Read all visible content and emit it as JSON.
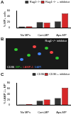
{
  "chart_data": [
    {
      "panel": "A",
      "type": "bar",
      "y_label": "% MP+ cells",
      "categories": [
        "No MPs",
        "Cont-MP",
        "Apo-MP"
      ],
      "series": [
        {
          "name": "Rag1−/−",
          "color": "#333333",
          "values": [
            4,
            20,
            22
          ]
        },
        {
          "name": "Rag1−/− + inhibitor",
          "color": "#d62728",
          "values": [
            5,
            18,
            50
          ]
        }
      ],
      "ylim": [
        0,
        60
      ],
      "yticks": [
        0,
        20,
        40,
        60
      ],
      "legend": "top",
      "grid": false
    },
    {
      "panel": "C",
      "type": "bar",
      "y_label": "% LAMP-1+ MP",
      "categories": [
        "No MPs",
        "Cont-MP",
        "Apo-MP"
      ],
      "series": [
        {
          "name": "CD36",
          "color": "#333333",
          "values": [
            2,
            15,
            25
          ]
        },
        {
          "name": "CD36 + inhibitor",
          "color": "#d62728",
          "values": [
            3,
            20,
            62
          ]
        }
      ],
      "ylim": [
        0,
        80
      ],
      "yticks": [
        0,
        20,
        40,
        60,
        80
      ],
      "legend": "top",
      "grid": false
    }
  ],
  "image_panel": {
    "panel": "B",
    "title": "Rag1−/− inhibitor",
    "labels": [
      {
        "text": "CD36",
        "color": "#ffffff"
      },
      {
        "text": "MP+",
        "color": "#33cc33"
      },
      {
        "text": "LAMP-1",
        "color": "#ff4444"
      },
      {
        "text": "DAPI",
        "color": "#4488ff"
      }
    ]
  }
}
